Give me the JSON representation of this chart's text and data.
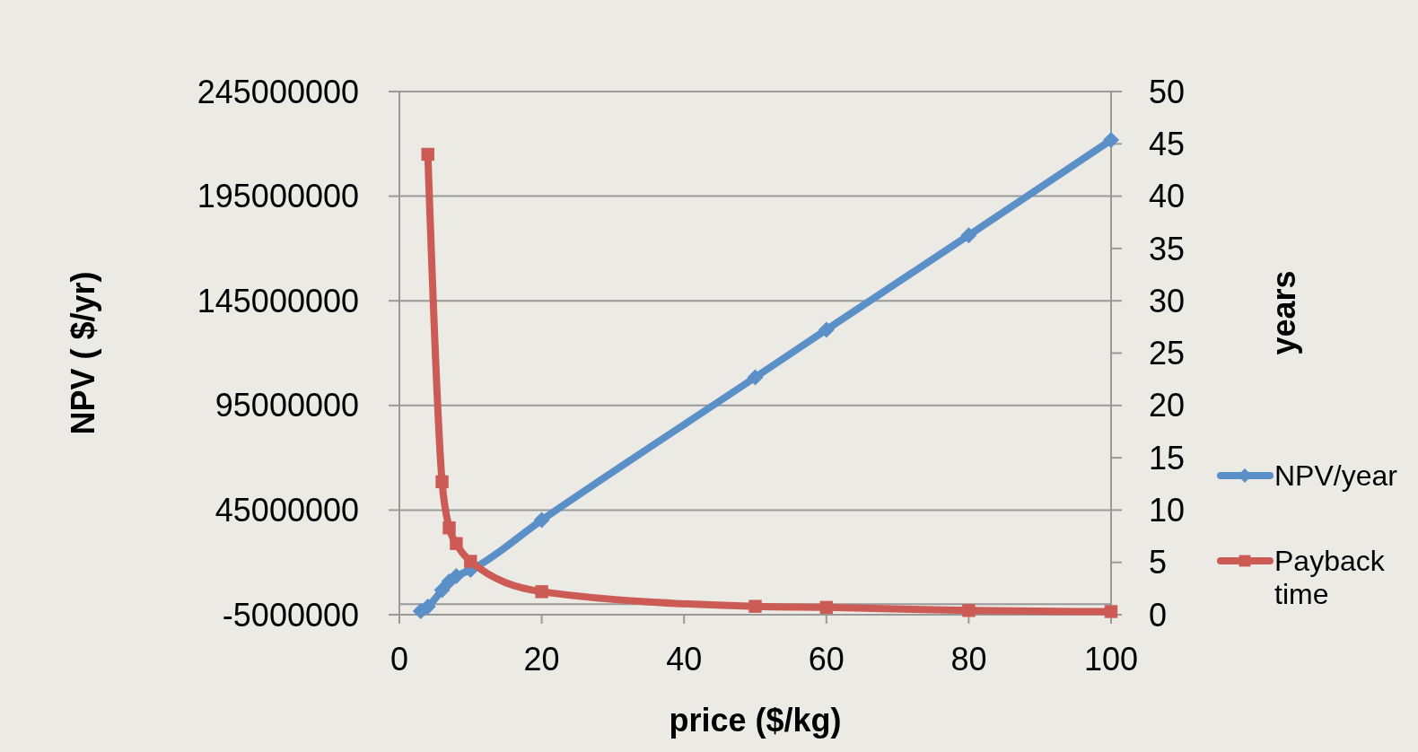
{
  "chart_data": {
    "type": "line",
    "xlabel": "price ($/kg)",
    "ylabel": "NPV ( $/yr)",
    "y2label": "years",
    "xlim": [
      0,
      100
    ],
    "xticks": [
      0,
      20,
      40,
      60,
      80,
      100
    ],
    "ylim": [
      -5000000,
      245000000
    ],
    "yticks": [
      -5000000,
      45000000,
      95000000,
      145000000,
      195000000,
      245000000
    ],
    "y2lim": [
      0,
      50
    ],
    "y2ticks": [
      0,
      5,
      10,
      15,
      20,
      25,
      30,
      35,
      40,
      45,
      50
    ],
    "grid": "y",
    "legend": "right",
    "series": [
      {
        "name": "NPV/year",
        "color": "#5b8fc8",
        "marker": "diamond",
        "x": [
          3,
          4,
          6,
          7,
          8,
          10,
          20,
          50,
          60,
          80,
          100
        ],
        "values": [
          -3300000,
          -1100000,
          6800000,
          10900000,
          13400000,
          16400000,
          40200000,
          108400000,
          131200000,
          176300000,
          221800000
        ]
      },
      {
        "name": "Payback time",
        "color": "#cc5b55",
        "marker": "square",
        "axis": "y2",
        "x": [
          4,
          6,
          7,
          8,
          10,
          20,
          50,
          60,
          80,
          100
        ],
        "values": [
          44,
          12.7,
          8.3,
          6.8,
          5.1,
          2.2,
          0.8,
          0.7,
          0.4,
          0.3
        ]
      }
    ]
  }
}
